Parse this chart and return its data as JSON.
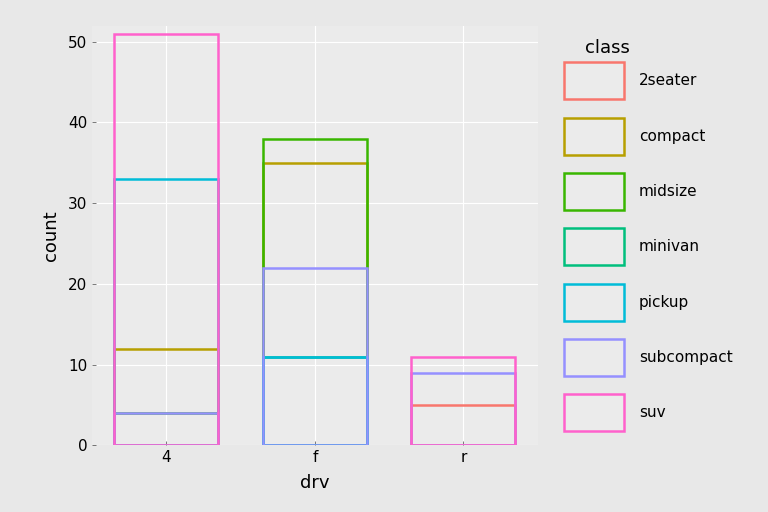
{
  "title": "",
  "xlabel": "drv",
  "ylabel": "count",
  "legend_title": "class",
  "ylim": [
    0,
    52
  ],
  "yticks": [
    0,
    10,
    20,
    30,
    40,
    50
  ],
  "drv_categories": [
    "4",
    "f",
    "r"
  ],
  "classes": [
    "2seater",
    "compact",
    "midsize",
    "minivan",
    "pickup",
    "subcompact",
    "suv"
  ],
  "class_colors": {
    "2seater": "#F8766D",
    "compact": "#B79F00",
    "midsize": "#39B600",
    "minivan": "#00BF7D",
    "pickup": "#00BCD8",
    "subcompact": "#9590FF",
    "suv": "#FF61CC"
  },
  "bar_data": {
    "4": {
      "2seater": 0,
      "compact": 12,
      "midsize": 4,
      "minivan": 0,
      "pickup": 33,
      "subcompact": 4,
      "suv": 51
    },
    "f": {
      "2seater": 0,
      "compact": 35,
      "midsize": 38,
      "minivan": 11,
      "pickup": 11,
      "subcompact": 22,
      "suv": 0
    },
    "r": {
      "2seater": 5,
      "compact": 0,
      "midsize": 0,
      "minivan": 0,
      "pickup": 0,
      "subcompact": 9,
      "suv": 11
    }
  },
  "bar_width": 0.7,
  "background_color": "#E8E8E8",
  "panel_background": "#EBEBEB",
  "grid_color": "#FFFFFF",
  "tick_label_size": 11,
  "axis_label_size": 13,
  "legend_title_size": 13,
  "legend_text_size": 11
}
